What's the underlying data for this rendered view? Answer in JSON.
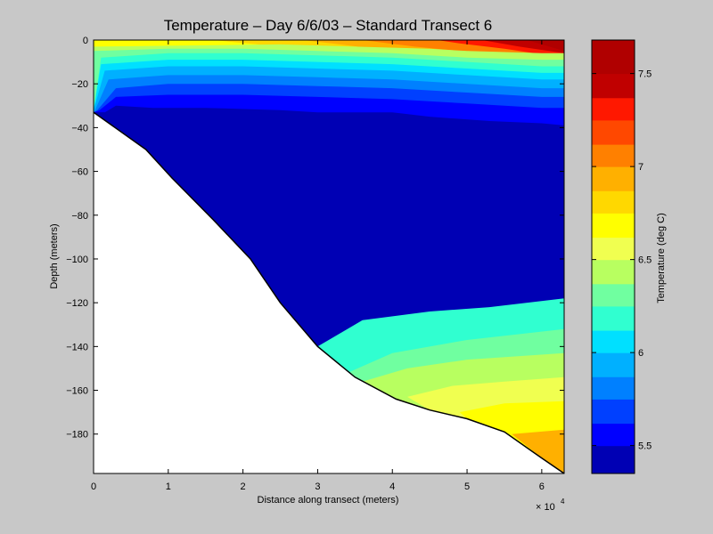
{
  "chart_data": {
    "type": "heatmap",
    "title": "Temperature – Day 6/6/03 – Standard Transect 6",
    "xlabel": "Distance along transect (meters)",
    "ylabel": "Depth (meters)",
    "x_exponent_label": "× 10",
    "x_exponent_power": "4",
    "xlim": [
      0,
      6.3
    ],
    "ylim": [
      -198,
      0
    ],
    "x_ticks": [
      {
        "value": 0,
        "label": "0"
      },
      {
        "value": 1,
        "label": "1"
      },
      {
        "value": 2,
        "label": "2"
      },
      {
        "value": 3,
        "label": "3"
      },
      {
        "value": 4,
        "label": "4"
      },
      {
        "value": 5,
        "label": "5"
      },
      {
        "value": 6,
        "label": "6"
      }
    ],
    "y_ticks": [
      {
        "value": 0,
        "label": "0"
      },
      {
        "value": -20,
        "label": "−20"
      },
      {
        "value": -40,
        "label": "−40"
      },
      {
        "value": -60,
        "label": "−60"
      },
      {
        "value": -80,
        "label": "−80"
      },
      {
        "value": -100,
        "label": "−100"
      },
      {
        "value": -120,
        "label": "−120"
      },
      {
        "value": -140,
        "label": "−140"
      },
      {
        "value": -160,
        "label": "−160"
      },
      {
        "value": -180,
        "label": "−180"
      }
    ],
    "bottom_profile": [
      [
        0,
        -33
      ],
      [
        0.7,
        -50
      ],
      [
        1.05,
        -63
      ],
      [
        1.6,
        -82
      ],
      [
        2.1,
        -100
      ],
      [
        2.5,
        -120
      ],
      [
        3.0,
        -140
      ],
      [
        3.5,
        -154
      ],
      [
        4.05,
        -164
      ],
      [
        4.5,
        -169
      ],
      [
        5.0,
        -173
      ],
      [
        5.5,
        -179
      ],
      [
        6.0,
        -191
      ],
      [
        6.3,
        -198
      ]
    ],
    "colorbar": {
      "label": "Temperature (deg C)",
      "range": [
        5.35,
        7.68
      ],
      "levels": [
        5.35,
        5.5,
        5.62,
        5.75,
        5.87,
        6.0,
        6.12,
        6.25,
        6.37,
        6.5,
        6.62,
        6.75,
        6.87,
        7.0,
        7.12,
        7.25,
        7.37,
        7.5,
        7.68
      ],
      "colors": [
        "#0000b4",
        "#0000ff",
        "#0040ff",
        "#0080ff",
        "#00b0ff",
        "#00e0ff",
        "#30ffd0",
        "#70ffa0",
        "#b8ff60",
        "#f0ff50",
        "#ffff00",
        "#ffd800",
        "#ffb000",
        "#ff8000",
        "#ff4800",
        "#ff1800",
        "#c00000",
        "#b00000"
      ],
      "ticks": [
        {
          "value": 5.5,
          "label": "5.5"
        },
        {
          "value": 6,
          "label": "6"
        },
        {
          "value": 6.5,
          "label": "6.5"
        },
        {
          "value": 7,
          "label": "7"
        },
        {
          "value": 7.5,
          "label": "7.5"
        }
      ]
    },
    "contour_bands": [
      {
        "level": 5.35,
        "top": [
          [
            0.3,
            -33
          ],
          [
            0.5,
            -40
          ],
          [
            1.3,
            -38
          ],
          [
            2.0,
            -37
          ],
          [
            3.0,
            -38
          ],
          [
            4.0,
            -41
          ],
          [
            4.8,
            -45
          ],
          [
            5.5,
            -46
          ],
          [
            6.3,
            -48
          ],
          [
            6.3,
            -198
          ]
        ],
        "bottom": null
      },
      {
        "level": 5.35,
        "region": [
          [
            0.65,
            -48
          ],
          [
            0.7,
            -46.5
          ],
          [
            2.2,
            -46.5
          ],
          [
            2.3,
            -48
          ],
          [
            2.3,
            -55
          ],
          [
            2.3,
            -60
          ],
          [
            2.15,
            -63
          ],
          [
            1.95,
            -66
          ],
          [
            1.75,
            -72
          ],
          [
            1.6,
            -80
          ],
          [
            1.5,
            -79
          ],
          [
            1.2,
            -72
          ],
          [
            0.8,
            -58
          ]
        ]
      },
      {
        "level": 5.5,
        "top": [
          [
            0.15,
            -33
          ],
          [
            0.3,
            -30
          ],
          [
            0.8,
            -31
          ],
          [
            1.5,
            -31
          ],
          [
            2.5,
            -32
          ],
          [
            3.0,
            -33
          ],
          [
            4.0,
            -33
          ],
          [
            4.5,
            -35
          ],
          [
            5.3,
            -37
          ],
          [
            6.0,
            -38
          ],
          [
            6.3,
            -39
          ],
          [
            6.3,
            -198
          ]
        ]
      },
      {
        "level": 5.62,
        "top": [
          [
            0.08,
            -32
          ],
          [
            0.3,
            -26
          ],
          [
            1.0,
            -25
          ],
          [
            2.0,
            -25
          ],
          [
            3.0,
            -26
          ],
          [
            4.0,
            -27
          ],
          [
            5.0,
            -29
          ],
          [
            6.0,
            -31
          ],
          [
            6.3,
            -31
          ],
          [
            6.3,
            -198
          ]
        ]
      },
      {
        "level": 5.75,
        "top": [
          [
            0.05,
            -32
          ],
          [
            0.3,
            -22
          ],
          [
            1.0,
            -20
          ],
          [
            2.0,
            -20
          ],
          [
            3.0,
            -21
          ],
          [
            4.0,
            -22
          ],
          [
            5.0,
            -24
          ],
          [
            6.0,
            -26
          ],
          [
            6.3,
            -26
          ],
          [
            6.3,
            -198
          ]
        ]
      },
      {
        "level": 5.87,
        "top": [
          [
            0.02,
            -32
          ],
          [
            0.2,
            -18
          ],
          [
            1.0,
            -16
          ],
          [
            2.0,
            -16
          ],
          [
            3.0,
            -17
          ],
          [
            4.0,
            -18
          ],
          [
            5.0,
            -20
          ],
          [
            6.0,
            -22
          ],
          [
            6.3,
            -22
          ],
          [
            6.3,
            -198
          ]
        ]
      },
      {
        "level": 6.0,
        "top": [
          [
            0,
            -32
          ],
          [
            0.15,
            -14
          ],
          [
            1.0,
            -12
          ],
          [
            2.0,
            -12
          ],
          [
            3.0,
            -13
          ],
          [
            4.0,
            -14
          ],
          [
            5.0,
            -16
          ],
          [
            6.0,
            -18
          ],
          [
            6.3,
            -18
          ],
          [
            6.3,
            -198
          ]
        ]
      },
      {
        "level": 6.12,
        "top": [
          [
            0,
            -32
          ],
          [
            0.1,
            -11
          ],
          [
            1.0,
            -9
          ],
          [
            2.0,
            -9
          ],
          [
            3.0,
            -10
          ],
          [
            4.0,
            -11
          ],
          [
            5.0,
            -13
          ],
          [
            6.0,
            -15
          ],
          [
            6.3,
            -15
          ],
          [
            6.3,
            -198
          ]
        ]
      },
      {
        "level": 6.25,
        "top": [
          [
            0,
            -32
          ],
          [
            0.1,
            -8
          ],
          [
            1.0,
            -6
          ],
          [
            2.0,
            -6
          ],
          [
            3.0,
            -7
          ],
          [
            4.0,
            -8
          ],
          [
            5.0,
            -10
          ],
          [
            6.0,
            -12
          ],
          [
            6.3,
            -12
          ],
          [
            6.3,
            -198
          ]
        ]
      },
      {
        "level": 6.37,
        "top": [
          [
            0,
            -32
          ],
          [
            0,
            -5
          ],
          [
            1.0,
            -4
          ],
          [
            2.0,
            -4
          ],
          [
            3.0,
            -5
          ],
          [
            4.0,
            -6
          ],
          [
            5.0,
            -8
          ],
          [
            6.0,
            -9
          ],
          [
            6.3,
            -9
          ],
          [
            6.3,
            -198
          ]
        ]
      },
      {
        "level": 6.5,
        "top": [
          [
            0,
            -32
          ],
          [
            0,
            -3
          ],
          [
            2.5,
            -2
          ],
          [
            3.5,
            -3
          ],
          [
            4.5,
            -4
          ],
          [
            5.0,
            -5
          ],
          [
            6.0,
            -6
          ],
          [
            6.3,
            -6
          ],
          [
            6.3,
            -198
          ]
        ]
      }
    ]
  }
}
